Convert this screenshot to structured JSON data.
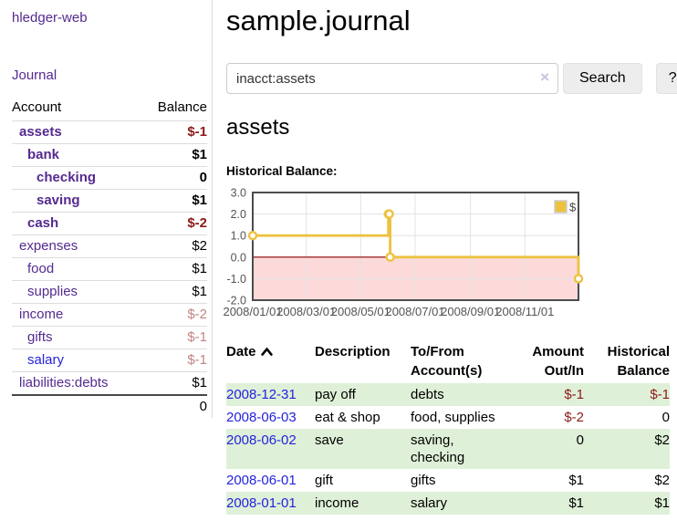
{
  "colors": {
    "link_purple": "#552a90",
    "link_blue": "#2323dd",
    "negative_strong": "#8d1a1a",
    "negative_muted": "#c08484",
    "row_stripe_green": "#dff0d8"
  },
  "sidebar": {
    "brand": "hledger-web",
    "journal_link": "Journal",
    "accounts_table": {
      "headers": [
        "Account",
        "Balance"
      ],
      "rows": [
        {
          "name": "assets",
          "depth": 1,
          "bold": true,
          "balance": "$-1",
          "balance_style": "neg-strong"
        },
        {
          "name": "bank",
          "depth": 2,
          "bold": true,
          "balance": "$1",
          "balance_style": "pos"
        },
        {
          "name": "checking",
          "depth": 3,
          "bold": true,
          "balance": "0",
          "balance_style": "pos"
        },
        {
          "name": "saving",
          "depth": 3,
          "bold": true,
          "balance": "$1",
          "balance_style": "pos"
        },
        {
          "name": "cash",
          "depth": 2,
          "bold": true,
          "balance": "$-2",
          "balance_style": "neg-strong"
        },
        {
          "name": "expenses",
          "depth": 1,
          "bold": false,
          "balance": "$2",
          "balance_style": "pos"
        },
        {
          "name": "food",
          "depth": 2,
          "bold": false,
          "balance": "$1",
          "balance_style": "pos"
        },
        {
          "name": "supplies",
          "depth": 2,
          "bold": false,
          "balance": "$1",
          "balance_style": "pos"
        },
        {
          "name": "income",
          "depth": 1,
          "bold": false,
          "balance": "$-2",
          "balance_style": "neg-muted"
        },
        {
          "name": "gifts",
          "depth": 2,
          "bold": false,
          "balance": "$-1",
          "balance_style": "neg-muted"
        },
        {
          "name": "salary",
          "depth": 2,
          "bold": false,
          "balance": "$-1",
          "balance_style": "neg-muted",
          "link_style": "unvisited"
        },
        {
          "name": "liabilities:debts",
          "depth": 1,
          "bold": false,
          "balance": "$1",
          "balance_style": "pos"
        }
      ],
      "total": "0"
    }
  },
  "header": {
    "title": "sample.journal"
  },
  "search": {
    "query": "inacct:assets",
    "clear_icon": "×",
    "button_label": "Search",
    "help_label": "?"
  },
  "account_page": {
    "title": "assets",
    "chart_label": "Historical Balance:"
  },
  "chart_data": {
    "type": "line",
    "title": "Historical Balance",
    "step": true,
    "series": [
      {
        "name": "$",
        "color": "#edc240",
        "points": [
          [
            "2008-01-01",
            1
          ],
          [
            "2008-06-01",
            2
          ],
          [
            "2008-06-02",
            2
          ],
          [
            "2008-06-03",
            0
          ],
          [
            "2008-12-31",
            -1
          ]
        ]
      }
    ],
    "ylim": [
      -2,
      3
    ],
    "yticks": [
      3.0,
      2.0,
      1.0,
      0.0,
      -1.0,
      -2.0
    ],
    "xticks": [
      "2008/01/01",
      "2008/03/01",
      "2008/05/01",
      "2008/07/01",
      "2008/09/01",
      "2008/11/01"
    ],
    "xrange": [
      "2008/01/01",
      "2008/12/31"
    ],
    "grid": true,
    "negative_fill": "#fcdada",
    "zero_line_color": "#8b0000",
    "legend": "$",
    "legend_position": "top-right"
  },
  "register_table": {
    "headers": [
      "Date",
      "Description",
      "To/From Account(s)",
      "Amount Out/In",
      "Historical Balance"
    ],
    "rows": [
      {
        "date": "2008-12-31",
        "description": "pay off",
        "accounts": "debts",
        "amount": "$-1",
        "amount_neg": true,
        "balance": "$-1",
        "balance_neg": true
      },
      {
        "date": "2008-06-03",
        "description": "eat & shop",
        "accounts": "food, supplies",
        "amount": "$-2",
        "amount_neg": true,
        "balance": "0",
        "balance_neg": false
      },
      {
        "date": "2008-06-02",
        "description": "save",
        "accounts": "saving, checking",
        "amount": "0",
        "amount_neg": false,
        "balance": "$2",
        "balance_neg": false
      },
      {
        "date": "2008-06-01",
        "description": "gift",
        "accounts": "gifts",
        "amount": "$1",
        "amount_neg": false,
        "balance": "$2",
        "balance_neg": false
      },
      {
        "date": "2008-01-01",
        "description": "income",
        "accounts": "salary",
        "amount": "$1",
        "amount_neg": false,
        "balance": "$1",
        "balance_neg": false
      }
    ]
  }
}
